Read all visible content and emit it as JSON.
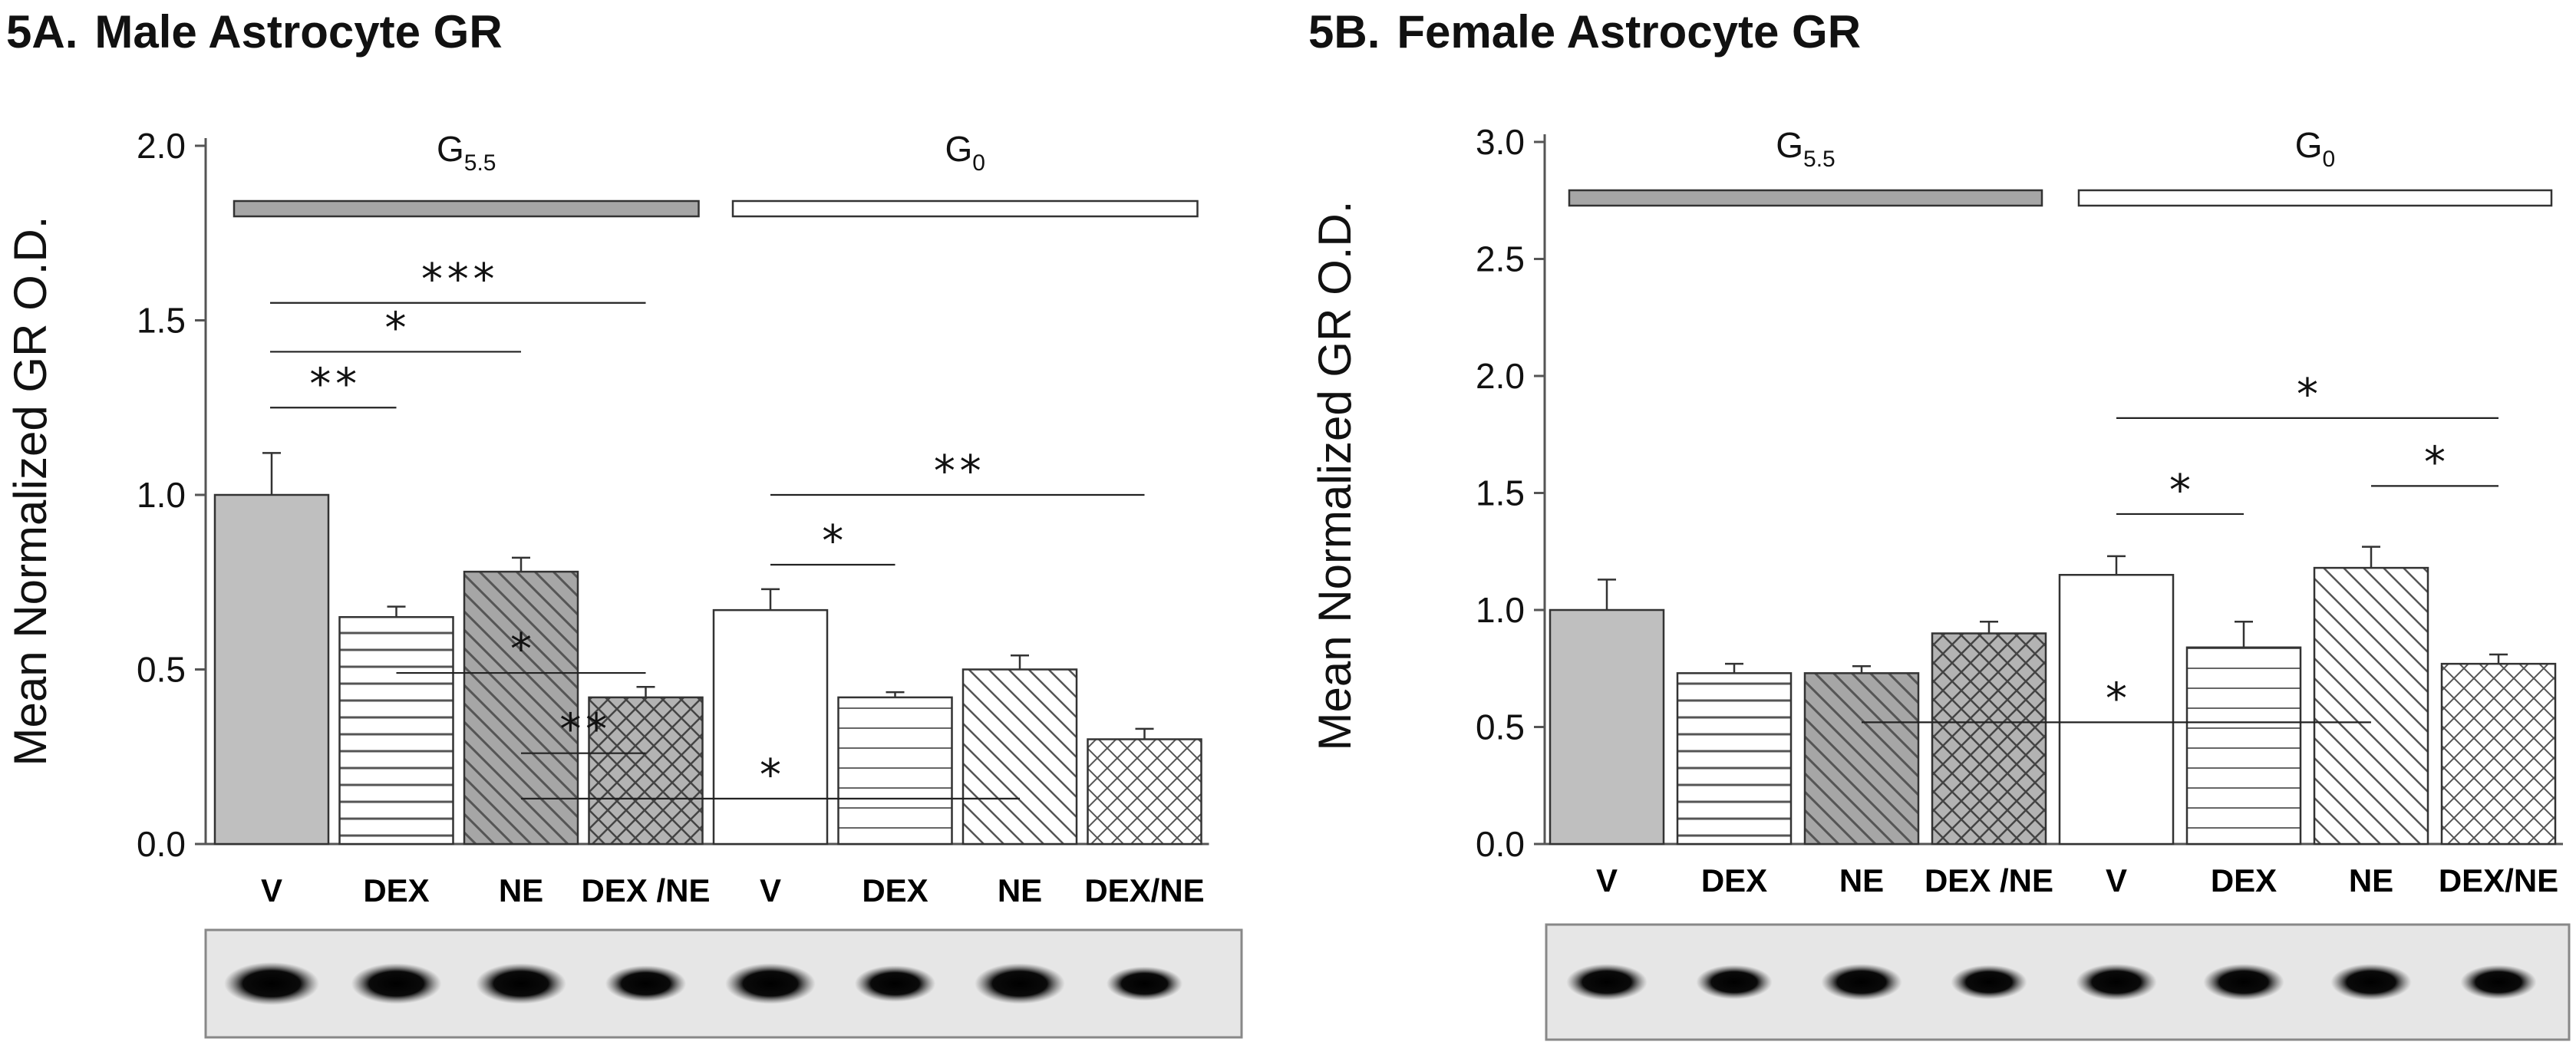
{
  "chart_data": [
    {
      "panel": "5A.",
      "title": "Male Astrocyte GR",
      "type": "bar",
      "ylabel": "Mean Normalized GR O.D.",
      "ylim": [
        0,
        2.0
      ],
      "yticks": [
        "0.0",
        "0.5",
        "1.0",
        "1.5",
        "2.0"
      ],
      "categories": [
        "V",
        "DEX",
        "NE",
        "DEX /NE",
        "V",
        "DEX",
        "NE",
        "DEX/NE"
      ],
      "values": [
        1.0,
        0.65,
        0.78,
        0.42,
        0.67,
        0.42,
        0.5,
        0.3
      ],
      "errors": [
        0.12,
        0.03,
        0.04,
        0.03,
        0.06,
        0.015,
        0.04,
        0.03
      ],
      "patterns": [
        "solid-gray",
        "horizontal",
        "diagonal-gray",
        "crosshatch-gray",
        "solid-white",
        "horizontal-white",
        "diagonal-white",
        "crosshatch-white"
      ],
      "groups": [
        {
          "label": "G",
          "sub": "5.5",
          "bars": [
            0,
            3
          ],
          "fill": "#a6a6a6"
        },
        {
          "label": "G",
          "sub": "0",
          "bars": [
            4,
            7
          ],
          "fill": "#ffffff"
        }
      ],
      "significance": [
        {
          "from": 0,
          "to": 3,
          "y": 1.55,
          "label": "***"
        },
        {
          "from": 0,
          "to": 2,
          "y": 1.41,
          "label": "*"
        },
        {
          "from": 0,
          "to": 1,
          "y": 1.25,
          "label": "**"
        },
        {
          "from": 4,
          "to": 7,
          "y": 1.0,
          "label": "**"
        },
        {
          "from": 4,
          "to": 5,
          "y": 0.8,
          "label": "*"
        },
        {
          "from": 1,
          "to": 3,
          "y": 0.49,
          "label": "*"
        },
        {
          "from": 2,
          "to": 3,
          "y": 0.26,
          "label": "**"
        },
        {
          "from": 2,
          "to": 6,
          "y": 0.13,
          "label": "*"
        }
      ],
      "blot_bands": [
        1.0,
        0.95,
        0.95,
        0.85,
        0.95,
        0.85,
        0.95,
        0.8
      ]
    },
    {
      "panel": "5B.",
      "title": "Female Astrocyte GR",
      "type": "bar",
      "ylabel": "Mean Normalized GR O.D.",
      "ylim": [
        0,
        3.0
      ],
      "yticks": [
        "0.0",
        "0.5",
        "1.0",
        "1.5",
        "2.0",
        "2.5",
        "3.0"
      ],
      "categories": [
        "V",
        "DEX",
        "NE",
        "DEX /NE",
        "V",
        "DEX",
        "NE",
        "DEX/NE"
      ],
      "values": [
        1.0,
        0.73,
        0.73,
        0.9,
        1.15,
        0.84,
        1.18,
        0.77
      ],
      "errors": [
        0.13,
        0.04,
        0.03,
        0.05,
        0.08,
        0.11,
        0.09,
        0.04
      ],
      "patterns": [
        "solid-gray",
        "horizontal",
        "diagonal-gray",
        "crosshatch-gray",
        "solid-white",
        "horizontal-white",
        "diagonal-white",
        "crosshatch-white"
      ],
      "groups": [
        {
          "label": "G",
          "sub": "5.5",
          "bars": [
            0,
            3
          ],
          "fill": "#a6a6a6"
        },
        {
          "label": "G",
          "sub": "0",
          "bars": [
            4,
            7
          ],
          "fill": "#ffffff"
        }
      ],
      "significance": [
        {
          "from": 4,
          "to": 7,
          "y": 1.82,
          "label": "*"
        },
        {
          "from": 4,
          "to": 5,
          "y": 1.41,
          "label": "*"
        },
        {
          "from": 6,
          "to": 7,
          "y": 1.53,
          "label": "*"
        },
        {
          "from": 2,
          "to": 6,
          "y": 0.52,
          "label": "*"
        }
      ],
      "blot_bands": [
        0.85,
        0.8,
        0.85,
        0.8,
        0.85,
        0.85,
        0.85,
        0.8
      ]
    }
  ]
}
